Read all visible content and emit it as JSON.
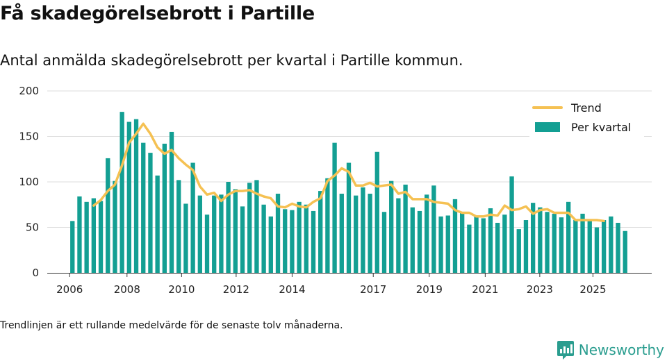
{
  "title": "Få skadegörelsebrott i Partille",
  "subtitle": "Antal anmälda skadegörelsebrott per kvartal i Partille kommun.",
  "footnote": "Trendlinjen är ett rullande medelvärde för de senaste tolv månaderna.",
  "brand": "Newsworthy",
  "colors": {
    "bar": "#139f93",
    "trend": "#f5c153",
    "grid": "#dddddd",
    "brand": "#2a9d8f"
  },
  "chart_data": {
    "type": "bar",
    "title": "Få skadegörelsebrott i Partille",
    "xlabel": "",
    "ylabel": "",
    "ylim": [
      0,
      200
    ],
    "yticks": [
      0,
      50,
      100,
      150,
      200
    ],
    "x_range": [
      2006.0,
      2025.75
    ],
    "x_axis_range": [
      2005.1,
      2026.7
    ],
    "xticks": [
      {
        "label": "2006",
        "x": 2005.9
      },
      {
        "label": "2008",
        "x": 2007.95
      },
      {
        "label": "2010",
        "x": 2009.9
      },
      {
        "label": "2012",
        "x": 2011.85
      },
      {
        "label": "2014",
        "x": 2013.85
      },
      {
        "label": "2017",
        "x": 2016.75
      },
      {
        "label": "2019",
        "x": 2018.75
      },
      {
        "label": "2021",
        "x": 2020.75
      },
      {
        "label": "2023",
        "x": 2022.7
      },
      {
        "label": "2025",
        "x": 2024.6
      }
    ],
    "legend": {
      "position": "top-right",
      "trend_label": "Trend",
      "bars_label": "Per kvartal"
    },
    "series": [
      {
        "name": "Per kvartal",
        "type": "bar",
        "values": [
          57,
          84,
          78,
          82,
          79,
          126,
          101,
          177,
          166,
          169,
          143,
          132,
          107,
          142,
          155,
          102,
          76,
          121,
          85,
          64,
          85,
          86,
          100,
          92,
          73,
          99,
          102,
          75,
          62,
          87,
          70,
          69,
          78,
          75,
          68,
          90,
          104,
          143,
          87,
          121,
          85,
          94,
          87,
          133,
          67,
          101,
          82,
          97,
          72,
          68,
          86,
          96,
          62,
          63,
          81,
          66,
          53,
          62,
          60,
          71,
          55,
          64,
          106,
          48,
          58,
          77,
          72,
          67,
          65,
          61,
          78,
          58,
          65,
          59,
          50,
          58,
          62,
          55,
          46
        ]
      },
      {
        "name": "Trend",
        "type": "line",
        "start_index": 3,
        "values": [
          74,
          80,
          90,
          97,
          118,
          143,
          153,
          164,
          153,
          138,
          131,
          135,
          126,
          119,
          113,
          95,
          86,
          88,
          79,
          86,
          90,
          90,
          91,
          87,
          84,
          82,
          73,
          72,
          76,
          73,
          72,
          78,
          82,
          101,
          107,
          115,
          111,
          96,
          96,
          99,
          95,
          96,
          97,
          87,
          89,
          81,
          81,
          81,
          78,
          77,
          76,
          69,
          66,
          66,
          62,
          62,
          64,
          63,
          74,
          69,
          70,
          73,
          65,
          69,
          70,
          66,
          66,
          66,
          58,
          58,
          58,
          58,
          57
        ]
      }
    ]
  }
}
